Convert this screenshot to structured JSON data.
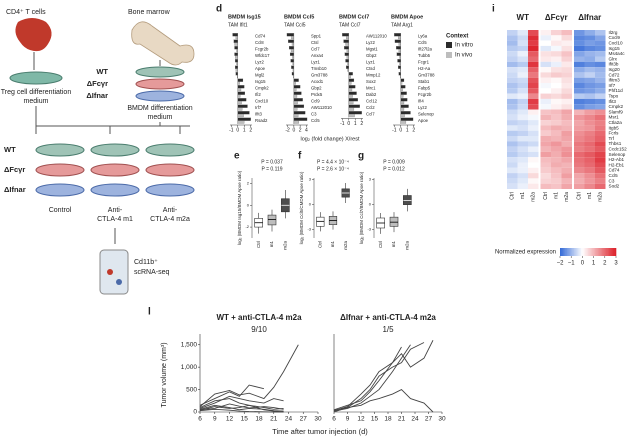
{
  "panel_labels": [
    "d",
    "e",
    "f",
    "g",
    "i",
    "l"
  ],
  "schematic": {
    "cd4": "CD4⁺ T cells",
    "bone_marrow": "Bone marrow",
    "genotypes_top": [
      "WT",
      "ΔFcγr",
      "ΔIfnar"
    ],
    "treg_medium": [
      "Treg cell differentiation",
      "medium"
    ],
    "bmdm_medium": [
      "BMDM differentiation",
      "medium"
    ],
    "genotypes_rows": [
      "WT",
      "ΔFcγr",
      "ΔIfnar"
    ],
    "conditions": [
      [
        "Control"
      ],
      [
        "Anti-",
        "CTLA-4 m1"
      ],
      [
        "Anti-",
        "CTLA-4 m2a"
      ]
    ],
    "readout": [
      "Cd11b⁺",
      "scRNA-seq"
    ]
  },
  "d_xlabel": "log₂ (fold change) X/rest",
  "chart_data": [
    {
      "type": "hbar",
      "title": "BMDM Isg15",
      "subtitle": "TAM Ifit1",
      "categories": [
        "Cd74",
        "Ccl8",
        "Fcgr2b",
        "Wfdc17",
        "Lyz2",
        "Apoe",
        "Mgl2",
        "Isg15",
        "Cmpk2",
        "Ifi2",
        "Cxcl10",
        "Irf7",
        "Ifit3",
        "Rsad2"
      ],
      "series": [
        {
          "color": "#2b2b2b",
          "values": [
            -0.8,
            -0.6,
            -0.5,
            -0.5,
            -0.4,
            -0.4,
            -0.3,
            0.8,
            1.0,
            1.1,
            1.3,
            1.5,
            1.8,
            2.0
          ]
        },
        {
          "color": "#bdbdbd",
          "values": [
            -0.3,
            -0.5,
            -0.2,
            -0.4,
            -0.2,
            -0.3,
            -0.1,
            0.3,
            0.5,
            0.4,
            0.6,
            0.7,
            0.9,
            1.0
          ]
        }
      ],
      "xlim": [
        -1.2,
        2.2
      ],
      "xticks": [
        -1,
        0,
        1,
        2
      ]
    },
    {
      "type": "hbar",
      "title": "BMDM Ccl5",
      "subtitle": "TAM Ccl5",
      "categories": [
        "Spp1",
        "Ctsl",
        "Ccl7",
        "Anxa4",
        "Lyz1",
        "Tmsb10",
        "Gm3788",
        "Acod1",
        "Gbp2",
        "Prdx5",
        "Ccl9",
        "AW112010",
        "C3",
        "Ccl5"
      ],
      "series": [
        {
          "color": "#2b2b2b",
          "values": [
            -2.2,
            -1.8,
            -1.5,
            -1.2,
            -1.0,
            -0.8,
            -0.6,
            1.5,
            2.0,
            2.4,
            2.8,
            3.2,
            3.6,
            4.2
          ]
        },
        {
          "color": "#bdbdbd",
          "values": [
            -0.8,
            -0.6,
            -0.9,
            -0.5,
            -0.4,
            -0.3,
            -0.2,
            0.6,
            0.8,
            1.0,
            1.2,
            1.1,
            1.4,
            1.6
          ]
        }
      ],
      "xlim": [
        -2.5,
        4.5
      ],
      "xticks": [
        -2,
        0,
        2,
        4
      ]
    },
    {
      "type": "hbar",
      "title": "BMDM Ccl7",
      "subtitle": "TAM Ccl7",
      "categories": [
        "AW112010",
        "Lyz2",
        "Mgst1",
        "Gbp2",
        "Lyz1",
        "Ctsd",
        "Mmp12",
        "Sox2",
        "Mrc1",
        "Dab2",
        "Ccl12",
        "Ccl2",
        "Ccl7"
      ],
      "series": [
        {
          "color": "#2b2b2b",
          "values": [
            -1.0,
            -0.8,
            -0.7,
            -0.6,
            -0.5,
            -0.4,
            0.6,
            0.8,
            1.0,
            1.2,
            1.4,
            1.7,
            2.0
          ]
        },
        {
          "color": "#bdbdbd",
          "values": [
            -0.4,
            -0.5,
            -0.3,
            -0.3,
            -0.2,
            -0.2,
            0.3,
            0.4,
            0.5,
            0.6,
            0.7,
            0.8,
            0.9
          ]
        }
      ],
      "xlim": [
        -1.2,
        2.2
      ],
      "xticks": [
        -1,
        0,
        1,
        2
      ]
    },
    {
      "type": "hbar",
      "title": "BMDM Apoe",
      "subtitle": "TAM Arg1",
      "categories": [
        "Ly6a",
        "Ccl5",
        "Ifi27l2a",
        "Tubb5",
        "Fcgr1",
        "H2-Aa",
        "Gm3788",
        "Stab1",
        "Fabp5",
        "Fcgr2b",
        "Ifi4",
        "Lyz2",
        "Selenop",
        "Apoe"
      ],
      "series": [
        {
          "name": "In vitro",
          "color": "#2b2b2b",
          "values": [
            -1.0,
            -0.9,
            -0.7,
            -0.6,
            -0.5,
            -0.4,
            -0.3,
            0.5,
            0.7,
            0.9,
            1.0,
            1.2,
            1.5,
            1.9
          ]
        },
        {
          "name": "In vivo",
          "color": "#bdbdbd",
          "values": [
            -0.4,
            -0.3,
            -0.3,
            -0.2,
            -0.2,
            -0.1,
            -0.1,
            0.2,
            0.3,
            0.4,
            0.5,
            0.5,
            0.6,
            0.8
          ]
        }
      ],
      "xlim": [
        -1.2,
        2.2
      ],
      "xticks": [
        -1,
        0,
        1,
        2
      ],
      "legend": {
        "title": "Context"
      }
    },
    {
      "type": "box",
      "ylabel": "log₂ (BMDM Isg15/BMDM Apoe ratio)",
      "p_values": [
        "P = 0.037",
        "P = 0.119"
      ],
      "categories": [
        "Ctrl",
        "m1",
        "m2a"
      ],
      "colors": [
        "#ffffff",
        "#bdbdbd",
        "#4d4d4d"
      ],
      "boxes": [
        {
          "min": -2.6,
          "q1": -2.0,
          "median": -1.6,
          "q3": -1.2,
          "max": -0.7
        },
        {
          "min": -2.4,
          "q1": -1.8,
          "median": -1.3,
          "q3": -0.9,
          "max": -0.4
        },
        {
          "min": -1.2,
          "q1": -0.6,
          "median": 0.0,
          "q3": 0.6,
          "max": 1.4
        }
      ],
      "ylim": [
        -3,
        2.5
      ],
      "yticks": [
        -2,
        0,
        2
      ]
    },
    {
      "type": "box",
      "ylabel": "log₂ (BMDM Ccl5/CMDM Apoe ratio)",
      "p_values": [
        "P = 4.4 × 10⁻⁴",
        "P = 2.6 × 10⁻⁴"
      ],
      "categories": [
        "Ctrl",
        "m1",
        "m2a"
      ],
      "colors": [
        "#ffffff",
        "#bdbdbd",
        "#4d4d4d"
      ],
      "boxes": [
        {
          "min": -3.2,
          "q1": -2.6,
          "median": -2.0,
          "q3": -1.5,
          "max": -0.9
        },
        {
          "min": -3.0,
          "q1": -2.4,
          "median": -1.9,
          "q3": -1.4,
          "max": -0.8
        },
        {
          "min": 0.2,
          "q1": 0.9,
          "median": 1.4,
          "q3": 1.9,
          "max": 2.6
        }
      ],
      "ylim": [
        -4,
        3.2
      ],
      "yticks": [
        -3,
        0,
        3
      ]
    },
    {
      "type": "box",
      "ylabel": "log₂ (BMDM Ccl7/BMDM Apoe ratio)",
      "p_values": [
        "P = 0.009",
        "P = 0.012"
      ],
      "categories": [
        "Ctrl",
        "m1",
        "m2a"
      ],
      "colors": [
        "#ffffff",
        "#bdbdbd",
        "#4d4d4d"
      ],
      "boxes": [
        {
          "min": -3.5,
          "q1": -2.8,
          "median": -2.2,
          "q3": -1.6,
          "max": -1.0
        },
        {
          "min": -3.3,
          "q1": -2.6,
          "median": -2.1,
          "q3": -1.5,
          "max": -0.9
        },
        {
          "min": -0.8,
          "q1": 0.0,
          "median": 0.5,
          "q3": 1.1,
          "max": 1.9
        }
      ],
      "ylim": [
        -4,
        3.2
      ],
      "yticks": [
        -3,
        0,
        3
      ]
    },
    {
      "type": "heatmap",
      "groups": [
        "WT",
        "ΔFcγr",
        "ΔIfnar"
      ],
      "columns": [
        "Ctrl",
        "m1",
        "m2a",
        "Ctrl",
        "m1",
        "m2a",
        "Ctrl",
        "m1",
        "m2a"
      ],
      "rows": [
        "Il2rg",
        "Cxcl9",
        "Cxcl10",
        "Isg15",
        "Ms4a4c",
        "Glrx",
        "Ifit3b",
        "Isg20",
        "Cd72",
        "Ifitm3",
        "Irf7",
        "Phf11d",
        "Tspo",
        "Ifit3",
        "Cmpk2",
        "Slamf9",
        "Msr1",
        "Ctla2a",
        "Itgb5",
        "Fcrls",
        "Trf",
        "Thbs1",
        "Ccdc152",
        "Selenop",
        "H2-Ab1",
        "H2-Eb1",
        "Cd74",
        "Ccl5",
        "C3",
        "Sod2"
      ],
      "values": [
        [
          -0.6,
          -0.3,
          2.4,
          0.2,
          0.6,
          0.9,
          -1.4,
          -1.1,
          -0.8
        ],
        [
          -0.8,
          -0.5,
          2.8,
          -0.2,
          0.1,
          0.5,
          -1.6,
          -1.5,
          -1.2
        ],
        [
          -0.9,
          -0.4,
          2.6,
          0.0,
          0.3,
          0.2,
          -1.5,
          -1.3,
          -1.4
        ],
        [
          -0.7,
          -0.6,
          2.9,
          -0.3,
          -0.1,
          0.4,
          -1.8,
          -1.6,
          -1.5
        ],
        [
          -0.5,
          -0.2,
          2.2,
          0.4,
          0.5,
          0.8,
          -1.2,
          -1.0,
          -0.9
        ],
        [
          -0.6,
          -0.4,
          2.0,
          0.3,
          0.2,
          0.6,
          -1.0,
          -1.1,
          -0.7
        ],
        [
          -0.9,
          -0.7,
          2.7,
          -0.4,
          -0.2,
          0.3,
          -1.7,
          -1.5,
          -1.6
        ],
        [
          -0.4,
          -0.3,
          2.1,
          0.1,
          0.4,
          0.5,
          -1.1,
          -0.9,
          -1.0
        ],
        [
          -0.5,
          -0.2,
          1.8,
          0.5,
          0.7,
          0.6,
          -0.8,
          -0.6,
          -0.9
        ],
        [
          -0.6,
          -0.5,
          2.3,
          0.2,
          0.1,
          0.4,
          -1.3,
          -1.2,
          -1.0
        ],
        [
          -0.8,
          -0.6,
          2.5,
          -0.1,
          0.0,
          0.3,
          -1.6,
          -1.4,
          -1.3
        ],
        [
          -0.7,
          -0.4,
          2.2,
          0.0,
          0.2,
          0.5,
          -1.4,
          -1.3,
          -1.1
        ],
        [
          -0.3,
          -0.2,
          1.6,
          0.6,
          0.5,
          0.7,
          -0.7,
          -0.8,
          -0.6
        ],
        [
          -0.9,
          -0.6,
          2.6,
          -0.2,
          0.1,
          0.2,
          -1.7,
          -1.6,
          -1.5
        ],
        [
          -0.8,
          -0.5,
          2.4,
          -0.1,
          0.2,
          0.4,
          -1.5,
          -1.3,
          -1.2
        ],
        [
          -0.5,
          -0.3,
          0.2,
          0.8,
          0.9,
          1.2,
          1.0,
          1.3,
          1.5
        ],
        [
          -0.4,
          -0.2,
          -0.1,
          1.0,
          0.8,
          1.1,
          1.4,
          1.6,
          1.9
        ],
        [
          -0.6,
          -0.5,
          -0.3,
          0.6,
          0.7,
          0.9,
          1.2,
          1.5,
          1.7
        ],
        [
          -0.3,
          -0.4,
          -0.2,
          0.9,
          1.1,
          1.0,
          1.3,
          1.4,
          1.8
        ],
        [
          -0.7,
          -0.6,
          -0.4,
          0.7,
          0.9,
          1.3,
          1.5,
          1.7,
          2.0
        ],
        [
          -0.5,
          -0.3,
          -0.3,
          1.1,
          1.0,
          1.2,
          1.6,
          1.8,
          2.1
        ],
        [
          -0.8,
          -0.6,
          -0.5,
          1.2,
          1.4,
          1.1,
          1.8,
          2.0,
          2.4
        ],
        [
          -0.6,
          -0.4,
          -0.2,
          1.0,
          1.2,
          1.4,
          1.7,
          1.9,
          2.2
        ],
        [
          -0.7,
          -0.5,
          -0.4,
          1.3,
          1.1,
          1.5,
          2.0,
          2.2,
          2.5
        ],
        [
          -0.4,
          -0.3,
          0.1,
          0.9,
          1.0,
          1.2,
          1.9,
          2.1,
          2.6
        ],
        [
          -0.5,
          -0.2,
          0.0,
          0.8,
          1.1,
          1.0,
          1.8,
          2.0,
          2.4
        ],
        [
          -0.3,
          -0.2,
          0.2,
          0.7,
          0.9,
          1.1,
          1.6,
          1.8,
          2.2
        ],
        [
          -0.6,
          -0.4,
          0.5,
          0.5,
          0.8,
          1.3,
          1.2,
          1.5,
          1.9
        ],
        [
          -0.5,
          -0.3,
          0.1,
          0.6,
          0.7,
          1.0,
          1.1,
          1.4,
          1.7
        ],
        [
          -0.4,
          -0.2,
          0.3,
          0.9,
          0.8,
          1.2,
          1.3,
          1.6,
          2.0
        ]
      ],
      "colorbar_label": "Normalized expression",
      "zlim": [
        -2,
        3
      ],
      "colorbar_ticks": [
        {
          "value": -2,
          "label": "−2"
        },
        {
          "value": -1,
          "label": "−1"
        },
        0,
        1,
        2,
        3
      ]
    },
    {
      "type": "line",
      "title": "WT + anti-CTLA-4 m2a",
      "annotation": "9/10",
      "ylabel": "Tumor volume (mm³)",
      "xlabel": "Time after tumor injection (d)",
      "x": [
        6,
        9,
        12,
        14,
        16,
        19,
        21,
        23,
        26,
        28
      ],
      "series": [
        {
          "color": "#444",
          "values": [
            120,
            400,
            480,
            380,
            420,
            300,
            550,
            900,
            1500,
            null
          ]
        },
        {
          "color": "#444",
          "values": [
            150,
            300,
            450,
            350,
            600,
            520,
            null,
            null,
            null,
            null
          ]
        },
        {
          "color": "#444",
          "values": [
            80,
            200,
            350,
            300,
            250,
            200,
            300,
            250,
            null,
            null
          ]
        },
        {
          "color": "#444",
          "values": [
            60,
            150,
            100,
            50,
            80,
            60,
            30,
            20,
            null,
            null
          ]
        },
        {
          "color": "#444",
          "values": [
            40,
            120,
            80,
            100,
            150,
            100,
            60,
            80,
            null,
            null
          ]
        },
        {
          "color": "#444",
          "values": [
            100,
            250,
            300,
            200,
            150,
            50,
            20,
            0,
            null,
            null
          ]
        },
        {
          "color": "#444",
          "values": [
            30,
            60,
            40,
            20,
            10,
            5,
            0,
            0,
            null,
            null
          ]
        },
        {
          "color": "#444",
          "values": [
            50,
            80,
            180,
            130,
            90,
            120,
            100,
            60,
            null,
            null
          ]
        }
      ],
      "xlim": [
        6,
        30
      ],
      "xticks": [
        6,
        9,
        12,
        15,
        18,
        21,
        24,
        27,
        30
      ],
      "ylim": [
        0,
        1650
      ],
      "yticks": [
        0,
        500,
        {
          "value": 1000,
          "label": "1,000"
        },
        {
          "value": 1500,
          "label": "1,500"
        }
      ]
    },
    {
      "type": "line",
      "title": "ΔIfnar + anti-CTLA-4 m2a",
      "annotation": "1/5",
      "x": [
        6,
        9,
        12,
        14,
        16,
        19,
        21,
        23,
        26,
        28
      ],
      "series": [
        {
          "color": "#444",
          "values": [
            0,
            100,
            300,
            500,
            800,
            1000,
            1100,
            1400,
            1550,
            null
          ]
        },
        {
          "color": "#444",
          "values": [
            50,
            150,
            250,
            450,
            700,
            1100,
            1300,
            1000,
            1200,
            1600
          ]
        },
        {
          "color": "#444",
          "values": [
            20,
            80,
            200,
            350,
            500,
            900,
            1200,
            1500,
            null,
            null
          ]
        },
        {
          "color": "#444",
          "values": [
            30,
            120,
            400,
            600,
            900,
            1100,
            1450,
            null,
            null,
            null
          ]
        },
        {
          "color": "#444",
          "values": [
            40,
            100,
            150,
            250,
            300,
            400,
            500,
            300,
            200,
            0
          ]
        }
      ],
      "xlim": [
        6,
        30
      ],
      "xticks": [
        6,
        9,
        12,
        15,
        18,
        21,
        24,
        27,
        30
      ],
      "ylim": [
        0,
        1650
      ]
    }
  ]
}
